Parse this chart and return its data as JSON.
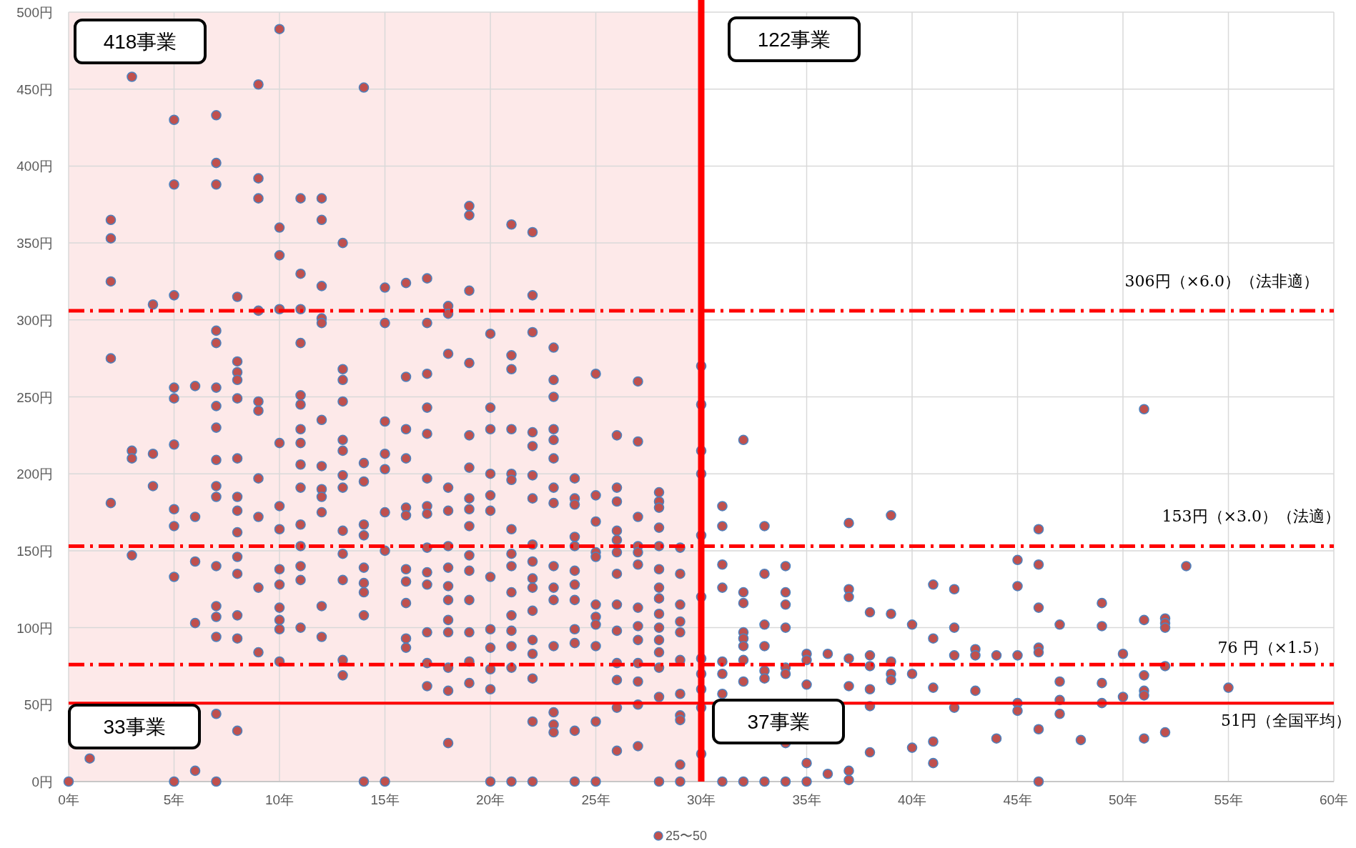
{
  "chart_data": {
    "type": "scatter",
    "x": [
      0,
      1,
      2,
      2,
      2,
      2,
      2,
      3,
      3,
      3,
      3,
      4,
      4,
      4,
      5,
      5,
      5,
      5,
      5,
      5,
      5,
      5,
      5,
      5,
      6,
      6,
      6,
      6,
      6,
      7,
      7,
      7,
      7,
      7,
      7,
      7,
      7,
      7,
      7,
      7,
      7,
      7,
      7,
      7,
      7,
      7,
      8,
      8,
      8,
      8,
      8,
      8,
      8,
      8,
      8,
      8,
      8,
      8,
      8,
      8,
      9,
      9,
      9,
      9,
      9,
      9,
      9,
      9,
      9,
      9,
      10,
      10,
      10,
      10,
      10,
      10,
      10,
      10,
      10,
      10,
      10,
      10,
      10,
      11,
      11,
      11,
      11,
      11,
      11,
      11,
      11,
      11,
      11,
      11,
      11,
      11,
      11,
      11,
      12,
      12,
      12,
      12,
      12,
      12,
      12,
      12,
      12,
      12,
      12,
      12,
      13,
      13,
      13,
      13,
      13,
      13,
      13,
      13,
      13,
      13,
      13,
      13,
      13,
      14,
      14,
      14,
      14,
      14,
      14,
      14,
      14,
      14,
      14,
      15,
      15,
      15,
      15,
      15,
      15,
      15,
      15,
      16,
      16,
      16,
      16,
      16,
      16,
      16,
      16,
      16,
      16,
      16,
      17,
      17,
      17,
      17,
      17,
      17,
      17,
      17,
      17,
      17,
      17,
      17,
      17,
      17,
      18,
      18,
      18,
      18,
      18,
      18,
      18,
      18,
      18,
      18,
      18,
      18,
      18,
      18,
      19,
      19,
      19,
      19,
      19,
      19,
      19,
      19,
      19,
      19,
      19,
      19,
      19,
      19,
      19,
      20,
      20,
      20,
      20,
      20,
      20,
      20,
      20,
      20,
      20,
      20,
      20,
      21,
      21,
      21,
      21,
      21,
      21,
      21,
      21,
      21,
      21,
      21,
      21,
      21,
      21,
      21,
      22,
      22,
      22,
      22,
      22,
      22,
      22,
      22,
      22,
      22,
      22,
      22,
      22,
      22,
      22,
      22,
      22,
      23,
      23,
      23,
      23,
      23,
      23,
      23,
      23,
      23,
      23,
      23,
      23,
      23,
      23,
      23,
      24,
      24,
      24,
      24,
      24,
      24,
      24,
      24,
      24,
      24,
      24,
      24,
      25,
      25,
      25,
      25,
      25,
      25,
      25,
      25,
      25,
      25,
      25,
      26,
      26,
      26,
      26,
      26,
      26,
      26,
      26,
      26,
      26,
      26,
      26,
      26,
      27,
      27,
      27,
      27,
      27,
      27,
      27,
      27,
      27,
      27,
      27,
      27,
      27,
      28,
      28,
      28,
      28,
      28,
      28,
      28,
      28,
      28,
      28,
      28,
      28,
      28,
      28,
      28,
      29,
      29,
      29,
      29,
      29,
      29,
      29,
      29,
      29,
      29,
      29,
      30,
      30,
      30,
      30,
      30,
      30,
      30,
      30,
      30,
      30,
      30,
      31,
      31,
      31,
      31,
      31,
      31,
      31,
      31,
      32,
      32,
      32,
      32,
      32,
      32,
      32,
      32,
      32,
      33,
      33,
      33,
      33,
      33,
      33,
      33,
      34,
      34,
      34,
      34,
      34,
      34,
      34,
      34,
      35,
      35,
      35,
      35,
      35,
      36,
      36,
      37,
      37,
      37,
      37,
      37,
      37,
      37,
      38,
      38,
      38,
      38,
      38,
      38,
      39,
      39,
      39,
      39,
      39,
      40,
      40,
      40,
      41,
      41,
      41,
      41,
      41,
      42,
      42,
      42,
      42,
      43,
      43,
      43,
      44,
      44,
      45,
      45,
      45,
      45,
      45,
      46,
      46,
      46,
      46,
      46,
      46,
      46,
      47,
      47,
      47,
      47,
      48,
      49,
      49,
      49,
      49,
      50,
      50,
      51,
      51,
      51,
      51,
      51,
      51,
      52,
      52,
      52,
      52,
      52,
      53,
      55
    ],
    "series": [
      {
        "name": "25〜50",
        "color": "#c0504d",
        "values": [
          0,
          15,
          365,
          353,
          325,
          275,
          181,
          458,
          215,
          210,
          147,
          310,
          213,
          192,
          430,
          388,
          316,
          256,
          249,
          219,
          177,
          166,
          133,
          0,
          257,
          172,
          143,
          103,
          7,
          433,
          402,
          388,
          293,
          285,
          256,
          244,
          230,
          209,
          192,
          185,
          140,
          114,
          107,
          94,
          44,
          0,
          315,
          273,
          266,
          261,
          249,
          210,
          185,
          176,
          162,
          146,
          135,
          108,
          93,
          33,
          453,
          392,
          379,
          306,
          247,
          241,
          197,
          172,
          126,
          84,
          489,
          360,
          342,
          307,
          220,
          179,
          164,
          138,
          128,
          113,
          105,
          99,
          78,
          379,
          330,
          307,
          285,
          251,
          245,
          229,
          220,
          206,
          191,
          167,
          153,
          140,
          131,
          100,
          379,
          365,
          322,
          301,
          298,
          235,
          205,
          190,
          185,
          175,
          114,
          94,
          350,
          268,
          261,
          247,
          222,
          215,
          199,
          191,
          163,
          148,
          131,
          79,
          69,
          451,
          207,
          195,
          167,
          160,
          139,
          129,
          123,
          108,
          0,
          321,
          298,
          234,
          213,
          203,
          175,
          150,
          0,
          324,
          263,
          229,
          210,
          178,
          173,
          138,
          130,
          116,
          93,
          87,
          327,
          298,
          265,
          243,
          226,
          197,
          179,
          174,
          152,
          136,
          128,
          97,
          77,
          62,
          309,
          304,
          278,
          191,
          176,
          153,
          139,
          127,
          118,
          105,
          97,
          74,
          59,
          25,
          374,
          368,
          319,
          272,
          225,
          204,
          184,
          177,
          166,
          147,
          137,
          118,
          97,
          78,
          64,
          291,
          243,
          229,
          200,
          186,
          176,
          133,
          99,
          87,
          73,
          60,
          0,
          362,
          277,
          268,
          229,
          200,
          196,
          164,
          148,
          140,
          123,
          108,
          98,
          88,
          74,
          0,
          357,
          316,
          292,
          227,
          218,
          199,
          184,
          154,
          143,
          132,
          126,
          111,
          92,
          83,
          67,
          39,
          0,
          282,
          261,
          250,
          229,
          222,
          210,
          191,
          181,
          140,
          126,
          118,
          88,
          45,
          37,
          32,
          197,
          184,
          180,
          159,
          153,
          137,
          128,
          118,
          99,
          90,
          33,
          0,
          265,
          186,
          169,
          149,
          146,
          115,
          107,
          102,
          88,
          39,
          0,
          225,
          191,
          182,
          163,
          157,
          149,
          135,
          115,
          98,
          77,
          66,
          48,
          20,
          260,
          221,
          172,
          153,
          149,
          141,
          113,
          101,
          92,
          77,
          65,
          50,
          23,
          188,
          182,
          178,
          165,
          153,
          138,
          126,
          119,
          109,
          100,
          92,
          84,
          74,
          55,
          0,
          152,
          135,
          115,
          104,
          97,
          79,
          57,
          43,
          40,
          11,
          0,
          270,
          245,
          215,
          200,
          160,
          120,
          80,
          70,
          60,
          48,
          18,
          179,
          166,
          141,
          126,
          78,
          70,
          57,
          0,
          222,
          123,
          116,
          97,
          93,
          88,
          79,
          65,
          0,
          166,
          135,
          102,
          88,
          72,
          67,
          0,
          140,
          123,
          115,
          100,
          74,
          70,
          25,
          0,
          83,
          79,
          63,
          12,
          0,
          83,
          5,
          168,
          125,
          120,
          80,
          62,
          7,
          1,
          110,
          82,
          75,
          60,
          49,
          19,
          173,
          109,
          78,
          70,
          66,
          102,
          70,
          22,
          128,
          93,
          61,
          26,
          12,
          125,
          100,
          82,
          48,
          86,
          82,
          59,
          82,
          28,
          144,
          127,
          82,
          51,
          46,
          164,
          141,
          113,
          87,
          84,
          34,
          0,
          102,
          65,
          53,
          44,
          27,
          116,
          101,
          64,
          51,
          83,
          55,
          242,
          105,
          69,
          59,
          56,
          28,
          106,
          103,
          100,
          75,
          32,
          140,
          61
        ]
      }
    ],
    "xlim": [
      0,
      60
    ],
    "xticks": [
      {
        "value": 0,
        "label": "0年"
      },
      {
        "value": 5,
        "label": "5年"
      },
      {
        "value": 10,
        "label": "10年"
      },
      {
        "value": 15,
        "label": "15年"
      },
      {
        "value": 20,
        "label": "20年"
      },
      {
        "value": 25,
        "label": "25年"
      },
      {
        "value": 30,
        "label": "30年"
      },
      {
        "value": 35,
        "label": "35年"
      },
      {
        "value": 40,
        "label": "40年"
      },
      {
        "value": 45,
        "label": "45年"
      },
      {
        "value": 50,
        "label": "50年"
      },
      {
        "value": 55,
        "label": "55年"
      },
      {
        "value": 60,
        "label": "60年"
      }
    ],
    "ylim": [
      0,
      500
    ],
    "yticks": [
      {
        "value": 0,
        "label": "0円"
      },
      {
        "value": 50,
        "label": "50円"
      },
      {
        "value": 100,
        "label": "100円"
      },
      {
        "value": 150,
        "label": "150円"
      },
      {
        "value": 200,
        "label": "200円"
      },
      {
        "value": 250,
        "label": "250円"
      },
      {
        "value": 300,
        "label": "300円"
      },
      {
        "value": 350,
        "label": "350円"
      },
      {
        "value": 400,
        "label": "400円"
      },
      {
        "value": 450,
        "label": "450円"
      },
      {
        "value": 500,
        "label": "500円"
      }
    ],
    "ref_lines": [
      {
        "axis": "y",
        "value": 306,
        "label": "306円（×6.0）（法非適）",
        "color": "#ff0000",
        "line_style": "dashed"
      },
      {
        "axis": "y",
        "value": 153,
        "label": "153円（×3.0）（法適）",
        "color": "#ff0000",
        "line_style": "dashed"
      },
      {
        "axis": "y",
        "value": 76,
        "label": "76 円（×1.5）",
        "color": "#ff0000",
        "line_style": "dashed"
      },
      {
        "axis": "y",
        "value": 51,
        "label": "51円（全国平均）",
        "color": "#ff0000",
        "line_style": "solid"
      },
      {
        "axis": "x",
        "value": 30,
        "color": "#ff0000",
        "line_style": "solid"
      }
    ],
    "bands": [
      {
        "axis": "x",
        "from": 0,
        "to": 30,
        "color": "#fde9e9"
      }
    ],
    "annotations": [
      "418事業",
      "122事業",
      "33事業",
      "37事業"
    ],
    "grid": true,
    "legend": "bottom",
    "marker": "circle"
  }
}
